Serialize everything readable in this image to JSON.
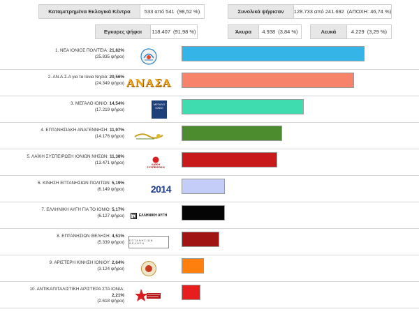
{
  "summary": {
    "centers_label": "Καταμετρημένα Εκλογικά Κέντρα",
    "centers_value": "533 από 541",
    "centers_pct": "(98,52 %)",
    "total_label": "Συνολικά ψήφισαν",
    "total_value": "128.733 από 241.692",
    "total_abstention": "(ΑΠΟΧΗ: 46,74 %)",
    "valid_label": "Εγκυρες ψήφοι",
    "valid_value": "118.407",
    "valid_pct": "(91,98 %)",
    "invalid_label": "Άκυρα",
    "invalid_value": "4.938",
    "invalid_pct": "(3,84 %)",
    "blank_label": "Λευκά",
    "blank_value": "4.229",
    "blank_pct": "(3,29 %)"
  },
  "parties": [
    {
      "name": "1. ΝΕΑ ΙΟΝΙΟΣ ΠΟΛΙΤΕΙΑ:",
      "pct": "21,82%",
      "pct_value": 21.82,
      "votes": "(25.835 ψήφοι)",
      "color": "#35b4e8",
      "logo": "nea-ioniois-politeia-logo"
    },
    {
      "name": "2. ΑΝ.Α.Σ.Α για τα Ιόνια Νησιά:",
      "pct": "20,56%",
      "pct_value": 20.56,
      "votes": "(24.349 ψήφοι)",
      "color": "#f7836a",
      "logo": "anasa-logo",
      "logo_text": "ΑΝΑΣΑ"
    },
    {
      "name": "3. ΜΕΓΑΛΟ ΙΟΝΙΟ:",
      "pct": "14,54%",
      "pct_value": 14.54,
      "votes": "(17.219 ψήφοι)",
      "color": "#3fdcb0",
      "logo": "megalo-ionio-logo",
      "logo_text": "ΜΕΓΑΛΟ ΙΟΝΙΟ"
    },
    {
      "name": "4. ΕΠΤΑΝΗΣΙΑΚΗ ΑΝΑΓΕΝΝΗΣΗ:",
      "pct": "11,97%",
      "pct_value": 11.97,
      "votes": "(14.176 ψήφοι)",
      "color": "#4c8c2f",
      "logo": "eptanisiaki-anagennisi-logo"
    },
    {
      "name": "5. ΛΑΪΚΗ ΣΥΣΠΕΙΡΩΣΗ ΙΟΝΙΩΝ ΝΗΣΩΝ:",
      "pct": "11,38%",
      "pct_value": 11.38,
      "votes": "(13.471 ψήφοι)",
      "color": "#c81a1a",
      "logo": "laiki-syspeirosi-logo",
      "logo_text": "ΛΑΪΚΗ ΣΥΣΠΕΙΡΩΣΗ"
    },
    {
      "name": "6. ΚΙΝΗΣΗ ΕΠΤΑΝΗΣΙΩΝ ΠΟΛΙΤΩΝ:",
      "pct": "5,19%",
      "pct_value": 5.19,
      "votes": "(6.149 ψήφοι)",
      "color": "#c4cdf7",
      "logo": "kinisi-eptanision-politon-logo",
      "logo_text": "2014"
    },
    {
      "name": "7. ΕΛΛΗΝΙΚΗ ΑΥΓΗ ΓΙΑ ΤΟ ΙΟΝΙΟ:",
      "pct": "5,17%",
      "pct_value": 5.17,
      "votes": "(6.127 ψήφοι)",
      "color": "#050505",
      "logo": "elliniki-avgi-logo",
      "logo_text": "ΕΛΛΗΝΙΚΗ ΑΥΓΗ"
    },
    {
      "name": "8. ΕΠΤΑΝΗΣΙΩΝ ΘΕΛΗΣΗ:",
      "pct": "4,51%",
      "pct_value": 4.51,
      "votes": "(5.339 ψήφοι)",
      "color": "#a01414",
      "logo": "eptanision-thelisi-logo",
      "logo_text": "ΕΠΤΑΝΗΣΙΩΝ ΘΕΛΗΣΗ"
    },
    {
      "name": "9. ΑΡΙΣΤΕΡΗ ΚΙΝΗΣΗ ΙΟΝΙΟΥ:",
      "pct": "2,64%",
      "pct_value": 2.64,
      "votes": "(3.124 ψήφοι)",
      "color": "#ff7f0e",
      "logo": "aristeri-kinisi-logo"
    },
    {
      "name": "10. ΑΝΤΙΚΑΠΙΤΑΛΙΣΤΙΚΗ ΑΡΙΣΤΕΡΑ ΣΤΑ ΙΟΝΙΑ:",
      "pct": "2,21%",
      "pct_value": 2.21,
      "votes": "(2.618 ψήφοι)",
      "color": "#e81e1e",
      "logo": "antikapitalistiki-aristera-logo"
    }
  ]
}
